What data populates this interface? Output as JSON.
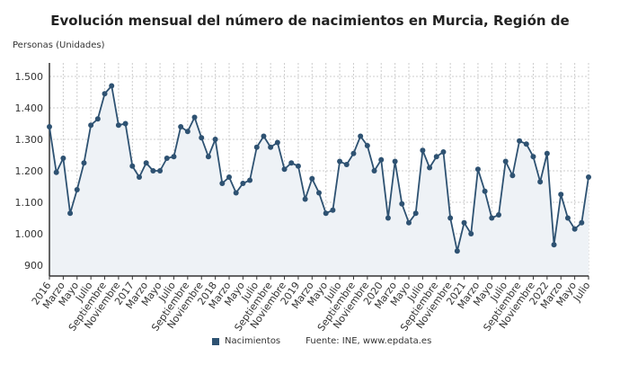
{
  "chart_data": {
    "type": "line",
    "title": "Evolución mensual del número de nacimientos en Murcia, Región de",
    "ylabel": "Personas (Unidades)",
    "xlabel": "",
    "ylim": [
      870,
      1530
    ],
    "yticks": [
      900,
      1000,
      1100,
      1200,
      1300,
      1400,
      1500
    ],
    "ytick_labels": [
      "900",
      "1.000",
      "1.100",
      "1.200",
      "1.300",
      "1.400",
      "1.500"
    ],
    "grid": true,
    "legend_position": "bottom",
    "x_start": "2016-01",
    "x_end": "2022-07",
    "xtick_labels": [
      "2016",
      "Marzo",
      "Mayo",
      "Julio",
      "Septiembre",
      "Noviembre",
      "2017",
      "Marzo",
      "Mayo",
      "Julio",
      "Septiembre",
      "Noviembre",
      "2018",
      "Marzo",
      "Mayo",
      "Julio",
      "Septiembre",
      "Noviembre",
      "2019",
      "Marzo",
      "Mayo",
      "Julio",
      "Septiembre",
      "Noviembre",
      "2020",
      "Marzo",
      "Mayo",
      "Julio",
      "Septiembre",
      "Noviembre",
      "2021",
      "Marzo",
      "Mayo",
      "Julio",
      "Septiembre",
      "Noviembre",
      "2022",
      "Marzo",
      "Mayo",
      "Julio"
    ],
    "series": [
      {
        "name": "Nacimientos",
        "color": "#2e5272",
        "values": [
          1340,
          1195,
          1240,
          1065,
          1140,
          1225,
          1345,
          1365,
          1445,
          1470,
          1345,
          1350,
          1215,
          1180,
          1225,
          1200,
          1200,
          1240,
          1245,
          1340,
          1325,
          1370,
          1305,
          1245,
          1300,
          1160,
          1180,
          1130,
          1160,
          1170,
          1275,
          1310,
          1275,
          1290,
          1205,
          1225,
          1215,
          1110,
          1175,
          1130,
          1065,
          1075,
          1230,
          1220,
          1255,
          1310,
          1280,
          1200,
          1235,
          1050,
          1230,
          1095,
          1035,
          1065,
          1265,
          1210,
          1245,
          1260,
          1050,
          945,
          1035,
          1000,
          1205,
          1135,
          1050,
          1060,
          1230,
          1185,
          1295,
          1285,
          1245,
          1165,
          1255,
          965,
          1125,
          1050,
          1015,
          1035,
          1180
        ]
      }
    ]
  },
  "legend": {
    "label": "Nacimientos"
  },
  "source": "Fuente: INE, www.epdata.es"
}
